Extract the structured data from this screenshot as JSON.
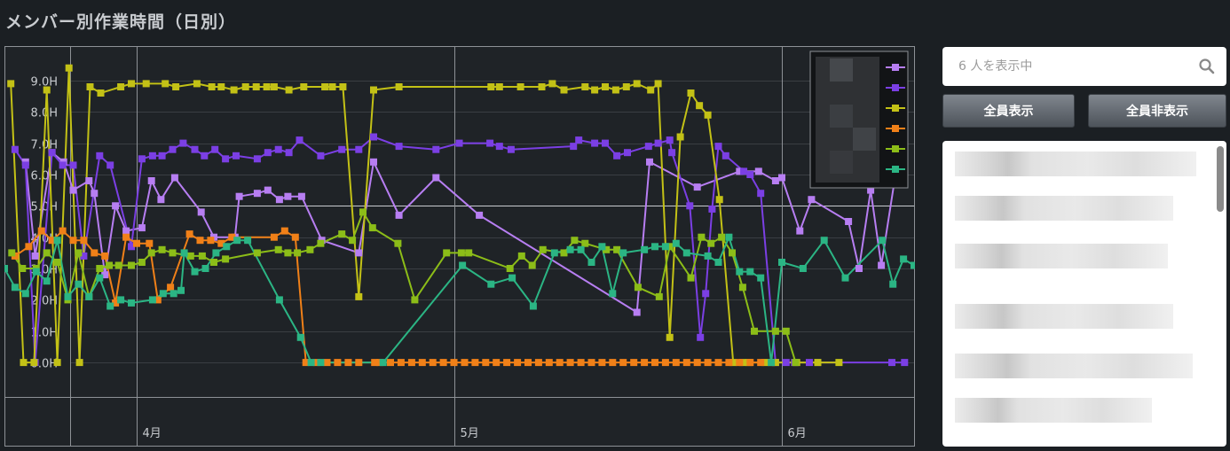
{
  "page": {
    "title": "メンバー別作業時間（日別）"
  },
  "search": {
    "placeholder": "6 人を表示中"
  },
  "buttons": {
    "show_all": "全員表示",
    "hide_all": "全員非表示"
  },
  "members": [
    "",
    "",
    "",
    "",
    "",
    ""
  ],
  "chart_data": {
    "type": "line",
    "title": "",
    "xlabel": "",
    "ylabel": "",
    "x_domain": [
      -12.5,
      73.5
    ],
    "ylim": [
      -1.1,
      10.1
    ],
    "y_ticks": [
      0,
      1,
      2,
      3,
      4,
      5,
      6,
      7,
      8,
      9
    ],
    "y_tick_format": "{v}.0H",
    "x_ticks": [
      {
        "x": 0,
        "label": "4月"
      },
      {
        "x": 30,
        "label": "5月"
      },
      {
        "x": 61,
        "label": "6月"
      }
    ],
    "grid": true,
    "legend": {
      "position": "top-right",
      "entries_blurred": true
    },
    "series": [
      {
        "color": "#b77ef2",
        "x": [
          -10.5,
          -9.6,
          -8.0,
          -6.9,
          -6.0,
          -4.5,
          -4.0,
          -3.0,
          -2.0,
          -1.0,
          0.5,
          1.4,
          2.3,
          3.6,
          6.1,
          7.3,
          9.3,
          9.7,
          11.4,
          12.4,
          13.5,
          14.3,
          15.6,
          17.5,
          21.0,
          22.4,
          24.8,
          28.3,
          32.4,
          47.3,
          48.5,
          53.0,
          57.0,
          58.8,
          60.4,
          61.0,
          62.7,
          63.8,
          67.3,
          68.3,
          69.4,
          70.4,
          71.6
        ],
        "y": [
          6.4,
          3.4,
          6.7,
          6.4,
          5.5,
          5.8,
          5.4,
          2.8,
          5.0,
          4.2,
          4.3,
          5.8,
          5.2,
          5.9,
          4.8,
          4.0,
          4.0,
          5.3,
          5.4,
          5.5,
          5.2,
          5.3,
          5.3,
          3.9,
          3.5,
          6.4,
          4.7,
          5.9,
          4.7,
          1.6,
          6.4,
          5.6,
          6.1,
          6.1,
          5.8,
          5.9,
          4.2,
          5.2,
          4.5,
          3.0,
          5.5,
          3.1,
          5.7
        ]
      },
      {
        "color": "#7b3fe4",
        "x": [
          -11.5,
          -10.5,
          -9.6,
          -8.0,
          -7.0,
          -6.0,
          -5.0,
          -3.5,
          -2.5,
          -0.5,
          0.5,
          1.5,
          2.4,
          3.4,
          4.4,
          5.5,
          6.4,
          7.4,
          8.4,
          9.4,
          11.4,
          12.4,
          13.4,
          14.4,
          15.4,
          17.4,
          19.4,
          21.0,
          22.4,
          24.8,
          28.3,
          30.5,
          33.4,
          34.3,
          35.4,
          41.3,
          41.8,
          43.3,
          44.3,
          45.4,
          46.4,
          48.4,
          49.3,
          50.4,
          50.6,
          52.3,
          53.3,
          53.8,
          54.4,
          55.0,
          55.7,
          57.4,
          58.0,
          59.0,
          60.4,
          61.4,
          62.2,
          63.6,
          64.4,
          71.4,
          72.6
        ],
        "y": [
          6.8,
          6.3,
          0.0,
          6.7,
          6.3,
          6.3,
          3.4,
          6.6,
          6.3,
          3.7,
          6.5,
          6.6,
          6.6,
          6.8,
          7.0,
          6.8,
          6.6,
          6.8,
          6.5,
          6.6,
          6.5,
          6.7,
          6.8,
          6.7,
          7.1,
          6.6,
          6.8,
          6.8,
          7.2,
          6.9,
          6.8,
          7.0,
          7.0,
          6.9,
          6.8,
          6.9,
          7.1,
          7.0,
          7.0,
          6.6,
          6.7,
          6.9,
          7.0,
          7.1,
          6.7,
          5.0,
          0.8,
          2.2,
          4.9,
          6.9,
          6.6,
          6.1,
          6.0,
          5.4,
          0.0,
          0.0,
          0.0,
          0.0,
          0.0,
          0.0,
          0.0
        ],
        "_note": ""
      },
      {
        "color": "#c3c116",
        "x": [
          -11.9,
          -10.7,
          -9.7,
          -8.5,
          -7.5,
          -6.4,
          -5.4,
          -4.4,
          -3.4,
          -1.5,
          -0.5,
          0.9,
          2.7,
          3.7,
          5.7,
          7.1,
          8.0,
          9.2,
          10.3,
          11.3,
          12.3,
          13.0,
          14.4,
          15.8,
          17.8,
          18.5,
          19.5,
          21.0,
          22.4,
          24.8,
          33.5,
          34.3,
          36.3,
          38.3,
          39.3,
          40.4,
          42.4,
          43.3,
          44.3,
          45.3,
          46.3,
          47.3,
          48.6,
          49.3,
          50.4,
          51.4,
          52.4,
          53.2,
          54.0,
          55.1,
          56.4,
          57.3,
          57.9,
          59.4,
          60.4,
          62.4,
          64.4,
          66.4
        ],
        "y": [
          8.9,
          0.0,
          0.0,
          8.7,
          0.0,
          9.4,
          0.0,
          8.8,
          8.6,
          8.8,
          8.9,
          8.9,
          8.9,
          8.8,
          8.9,
          8.8,
          8.8,
          8.7,
          8.8,
          8.8,
          8.8,
          8.8,
          8.7,
          8.8,
          8.8,
          8.8,
          8.8,
          2.1,
          8.7,
          8.8,
          8.8,
          8.8,
          8.8,
          8.8,
          8.9,
          8.7,
          8.8,
          8.7,
          8.8,
          8.7,
          8.8,
          8.9,
          8.7,
          8.9,
          0.8,
          7.2,
          8.6,
          8.2,
          7.9,
          5.2,
          0.0,
          0.0,
          0.0,
          0.0,
          0.0,
          0.0,
          0.0,
          0.0
        ],
        "_note": ""
      },
      {
        "color": "#f08018",
        "x": [
          -11.5,
          -10.2,
          -9.0,
          -8.0,
          -7.0,
          -6.0,
          -5.0,
          -4.0,
          -3.0,
          -2.0,
          -1.0,
          0.0,
          1.2,
          2.0,
          3.2,
          5.0,
          6.0,
          7.0,
          8.0,
          9.0,
          13.0,
          14.0,
          15.0,
          16.0,
          17.0,
          18.0,
          19.0,
          20.0,
          21.0,
          22.5,
          23.0,
          24.0,
          25.0,
          26.0,
          27.0,
          28.0,
          29.0,
          30.0,
          31.0,
          32.0,
          33.0,
          34.0,
          35.0,
          36.0,
          37.0,
          38.0,
          39.0,
          40.0,
          41.0,
          42.0,
          43.0,
          44.0,
          45.0,
          46.0,
          47.0,
          48.0,
          49.0,
          50.0,
          51.0,
          52.0,
          53.0,
          54.0,
          55.0,
          56.0,
          57.0,
          58.0,
          59.0,
          60.0
        ],
        "y": [
          3.4,
          3.7,
          4.2,
          3.9,
          4.2,
          3.9,
          3.9,
          3.5,
          3.4,
          1.9,
          4.0,
          3.8,
          3.8,
          2.0,
          2.4,
          4.1,
          3.9,
          3.9,
          3.8,
          4.0,
          4.0,
          4.2,
          4.0,
          0.0,
          0.0,
          0.0,
          0.0,
          0.0,
          0.0,
          0.0,
          0.0,
          0.0,
          0.0,
          0.0,
          0.0,
          0.0,
          0.0,
          0.0,
          0.0,
          0.0,
          0.0,
          0.0,
          0.0,
          0.0,
          0.0,
          0.0,
          0.0,
          0.0,
          0.0,
          0.0,
          0.0,
          0.0,
          0.0,
          0.0,
          0.0,
          0.0,
          0.0,
          0.0,
          0.0,
          0.0,
          0.0,
          0.0,
          0.0,
          0.0,
          0.0,
          0.0,
          0.0,
          0.0
        ]
      },
      {
        "color": "#8cbd18",
        "x": [
          -11.8,
          -10.8,
          -9.5,
          -8.5,
          -7.5,
          -6.5,
          -5.5,
          -4.5,
          -3.5,
          -2.6,
          -1.7,
          -0.5,
          0.5,
          1.4,
          2.4,
          3.4,
          5.1,
          6.2,
          7.3,
          8.4,
          11.4,
          13.4,
          14.3,
          15.2,
          16.4,
          17.4,
          19.4,
          20.4,
          21.4,
          22.3,
          24.7,
          26.3,
          29.3,
          30.7,
          31.4,
          35.3,
          36.4,
          37.4,
          38.4,
          40.4,
          41.4,
          42.4,
          44.4,
          45.4,
          47.4,
          49.4,
          50.4,
          52.4,
          53.4,
          54.3,
          55.3,
          56.3,
          57.3,
          58.4,
          60.4,
          61.4,
          62.3
        ],
        "y": [
          3.5,
          3.0,
          3.0,
          3.5,
          3.2,
          2.0,
          3.5,
          2.1,
          3.0,
          3.1,
          3.1,
          3.1,
          3.2,
          3.5,
          3.6,
          3.5,
          3.4,
          3.4,
          3.2,
          3.3,
          3.5,
          3.6,
          3.5,
          3.5,
          3.6,
          3.8,
          4.1,
          3.9,
          4.8,
          4.3,
          3.8,
          2.0,
          3.5,
          3.5,
          3.5,
          3.0,
          3.4,
          3.1,
          3.6,
          3.5,
          3.9,
          3.8,
          3.6,
          3.6,
          2.4,
          2.1,
          3.7,
          2.7,
          4.0,
          3.8,
          4.0,
          3.5,
          2.4,
          1.0,
          1.0,
          1.0,
          0.0
        ],
        "_note": ""
      },
      {
        "color": "#2bb584",
        "x": [
          -12.5,
          -11.5,
          -10.5,
          -9.5,
          -8.5,
          -7.5,
          -6.5,
          -5.5,
          -4.5,
          -3.5,
          -2.5,
          -1.5,
          -0.5,
          1.5,
          2.5,
          3.5,
          4.2,
          4.5,
          5.5,
          6.5,
          7.5,
          8.5,
          9.5,
          10.5,
          13.5,
          15.5,
          16.5,
          17.4,
          23.3,
          30.8,
          33.5,
          35.5,
          37.5,
          39.5,
          41.0,
          42.0,
          43.0,
          44.0,
          45.0,
          46.0,
          48.0,
          49.0,
          50.0,
          51.0,
          52.0,
          54.0,
          55.0,
          56.0,
          57.0,
          58.0,
          59.0,
          60.0,
          61.0,
          63.0,
          65.0,
          67.0,
          70.5,
          71.5,
          72.5,
          73.5
        ],
        "y": [
          3.0,
          2.4,
          2.2,
          2.9,
          2.6,
          3.9,
          2.1,
          2.5,
          2.1,
          2.7,
          1.8,
          2.0,
          1.9,
          2.0,
          2.2,
          2.2,
          2.3,
          3.5,
          2.9,
          3.0,
          3.5,
          3.7,
          3.9,
          3.9,
          2.0,
          0.8,
          0.0,
          0.0,
          0.0,
          3.1,
          2.5,
          2.7,
          1.8,
          3.5,
          3.6,
          3.6,
          3.2,
          3.7,
          2.2,
          3.5,
          3.6,
          3.7,
          3.7,
          3.8,
          3.5,
          3.4,
          3.2,
          4.0,
          2.9,
          2.9,
          2.7,
          0.0,
          3.2,
          3.0,
          3.9,
          2.7,
          3.9,
          2.5,
          3.3,
          3.1
        ],
        "_note": ""
      }
    ]
  }
}
